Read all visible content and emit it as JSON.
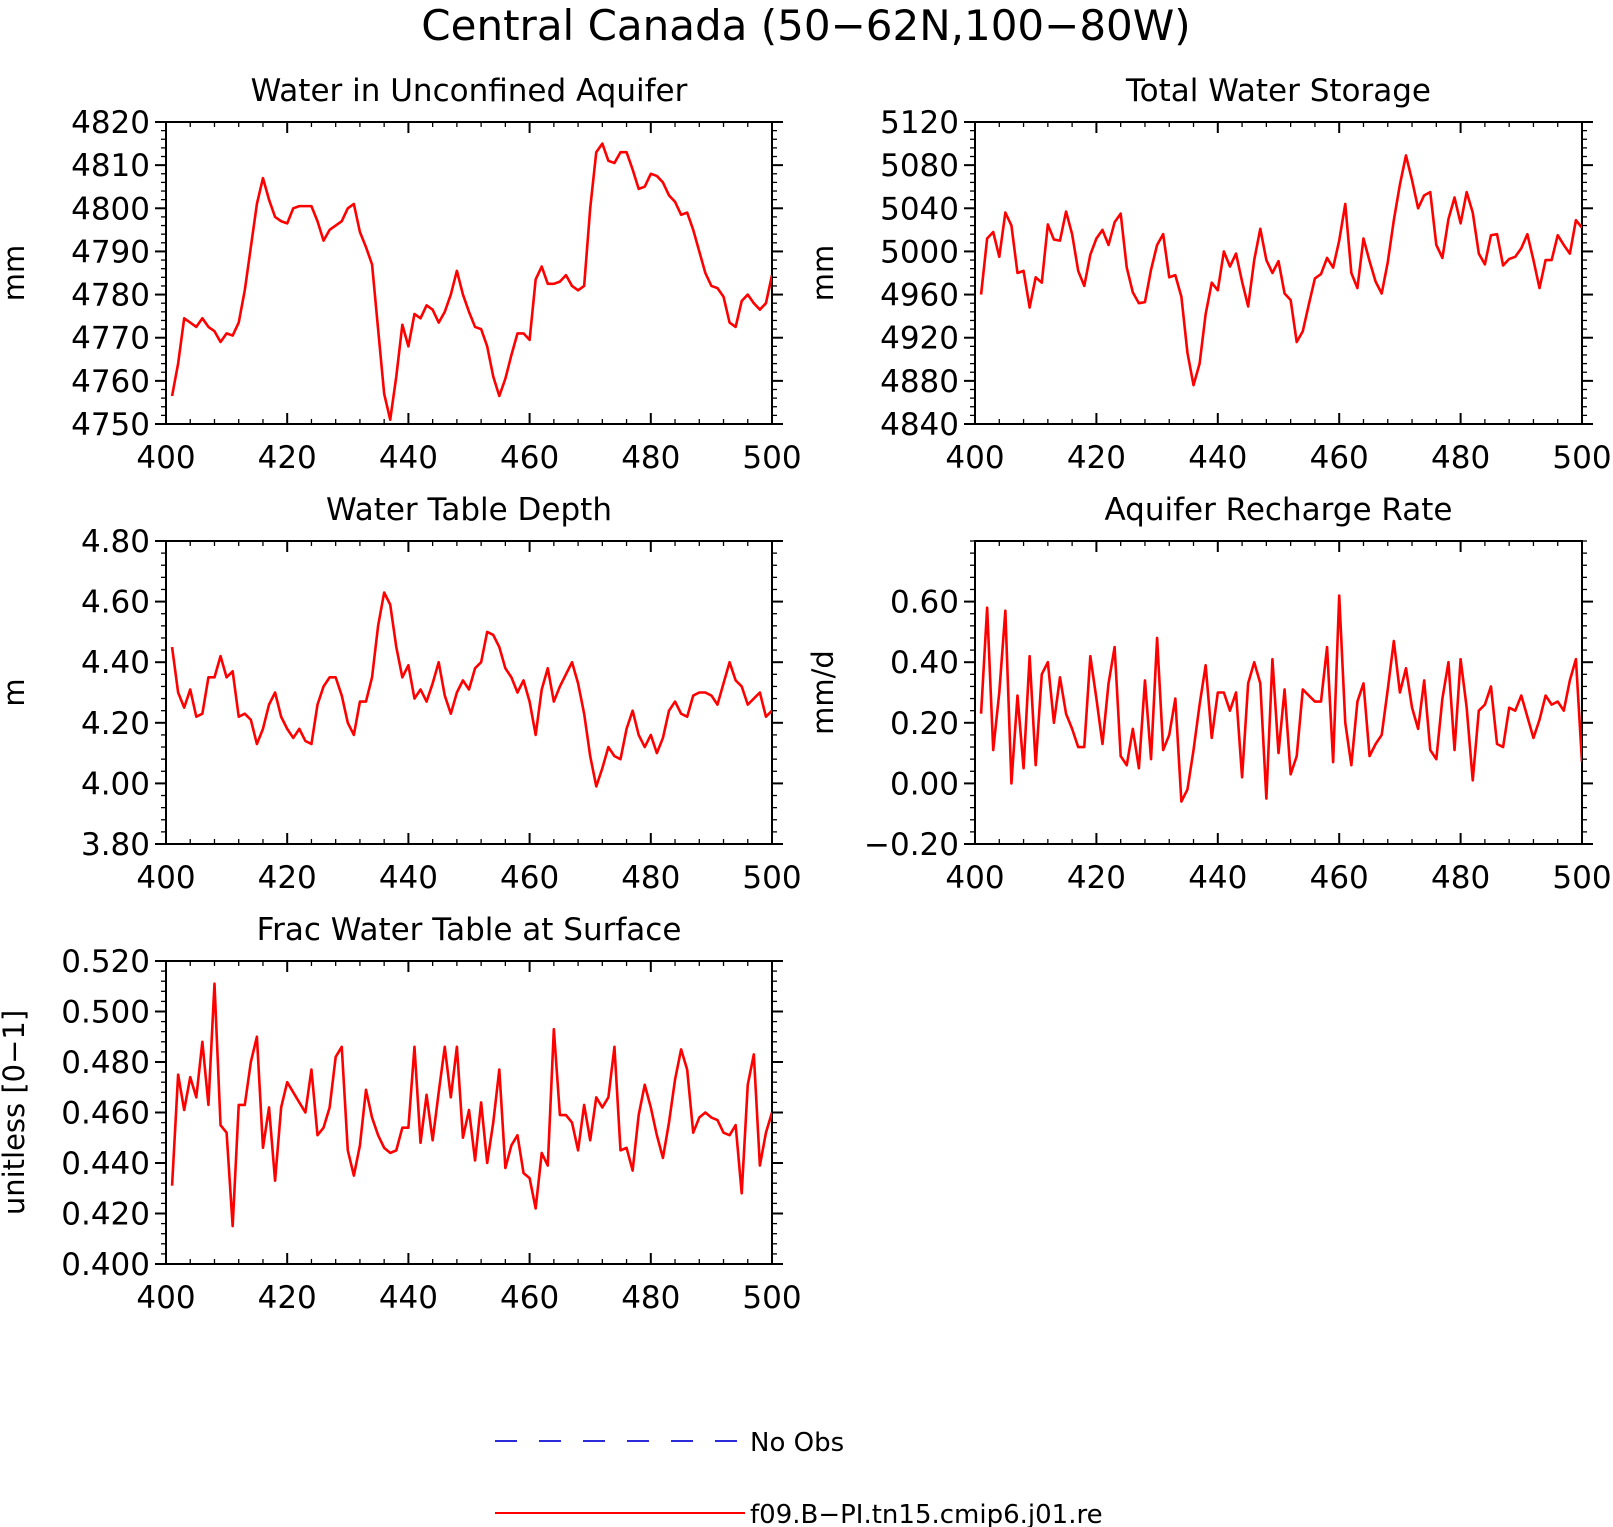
{
  "figure": {
    "title": "Central Canada (50−62N,100−80W)",
    "colors": {
      "model": "#ff0000",
      "obs": "#2b2bd9",
      "axis": "#000000"
    }
  },
  "legend": {
    "obs_label": "No Obs",
    "model_label": "f09.B−PI.tn15.cmip6.j01.re"
  },
  "chart_data": [
    {
      "type": "line",
      "title": "Water in Unconfined Aquifer",
      "xlabel": "",
      "ylabel": "mm",
      "xlim": [
        400,
        500
      ],
      "ylim": [
        4750,
        4820
      ],
      "xticks": [
        400,
        420,
        440,
        460,
        480,
        500
      ],
      "yticks": [
        4750,
        4760,
        4770,
        4780,
        4790,
        4800,
        4810,
        4820
      ],
      "ytick_labels": [
        "4750",
        "4760",
        "4770",
        "4780",
        "4790",
        "4800",
        "4810",
        "4820"
      ],
      "grid": false,
      "series": [
        {
          "name": "f09.B−PI.tn15.cmip6.j01.re",
          "x0": 401,
          "values": [
            4756.5,
            4764,
            4774.5,
            4773.5,
            4772.5,
            4774.5,
            4772.5,
            4771.5,
            4769,
            4771,
            4770.5,
            4773.5,
            4781,
            4791,
            4801,
            4807,
            4802,
            4798,
            4797,
            4796.5,
            4800,
            4800.5,
            4800.5,
            4800.5,
            4797,
            4792.5,
            4795,
            4796,
            4797,
            4800,
            4801,
            4794.5,
            4791,
            4787,
            4772,
            4757,
            4751,
            4761,
            4773,
            4768,
            4775.5,
            4774.5,
            4777.5,
            4776.5,
            4773.5,
            4776,
            4780,
            4785.5,
            4780,
            4776,
            4772.5,
            4772,
            4768,
            4761,
            4756.5,
            4760.5,
            4766,
            4771,
            4771,
            4769.5,
            4783.5,
            4786.5,
            4782.5,
            4782.5,
            4783,
            4784.5,
            4782,
            4781,
            4782,
            4800,
            4813,
            4815,
            4811,
            4810.5,
            4813,
            4813,
            4809,
            4804.5,
            4805,
            4808,
            4807.5,
            4806,
            4803,
            4801.5,
            4798.5,
            4799,
            4795,
            4790,
            4785,
            4782,
            4781.5,
            4779.5,
            4773.5,
            4772.5,
            4778.5,
            4780,
            4778,
            4776.5,
            4778,
            4784.5
          ]
        }
      ]
    },
    {
      "type": "line",
      "title": "Total Water Storage",
      "xlabel": "",
      "ylabel": "mm",
      "xlim": [
        400,
        500
      ],
      "ylim": [
        4840,
        5120
      ],
      "xticks": [
        400,
        420,
        440,
        460,
        480,
        500
      ],
      "yticks": [
        4840,
        4880,
        4920,
        4960,
        5000,
        5040,
        5080,
        5120
      ],
      "ytick_labels": [
        "4840",
        "4880",
        "4920",
        "4960",
        "5000",
        "5040",
        "5080",
        "5120"
      ],
      "grid": false,
      "series": [
        {
          "name": "f09.B−PI.tn15.cmip6.j01.re",
          "x0": 401,
          "values": [
            4960,
            5012,
            5018,
            4995,
            5036,
            5024,
            4980,
            4982,
            4948,
            4976,
            4971,
            5025,
            5011,
            5010,
            5037,
            5016,
            4982,
            4968,
            4997,
            5012,
            5020,
            5006,
            5027,
            5035,
            4985,
            4962,
            4952,
            4953,
            4983,
            5006,
            5016,
            4976,
            4978,
            4958,
            4906,
            4876,
            4896,
            4942,
            4971,
            4964,
            5000,
            4986,
            4998,
            4972,
            4949,
            4992,
            5021,
            4992,
            4980,
            4991,
            4961,
            4955,
            4916,
            4926,
            4951,
            4975,
            4979,
            4994,
            4985,
            5010,
            5044,
            4980,
            4966,
            5012,
            4991,
            4972,
            4961,
            4990,
            5029,
            5062,
            5089,
            5066,
            5040,
            5052,
            5055,
            5006,
            4994,
            5030,
            5050,
            5026,
            5055,
            5036,
            4998,
            4988,
            5015,
            5016,
            4987,
            4993,
            4995,
            5003,
            5016,
            4992,
            4966,
            4992,
            4992,
            5015,
            5006,
            4998,
            5029,
            5022
          ]
        }
      ]
    },
    {
      "type": "line",
      "title": "Water Table Depth",
      "xlabel": "",
      "ylabel": "m",
      "xlim": [
        400,
        500
      ],
      "ylim": [
        3.8,
        4.8
      ],
      "xticks": [
        400,
        420,
        440,
        460,
        480,
        500
      ],
      "yticks": [
        3.8,
        4.0,
        4.2,
        4.4,
        4.6,
        4.8
      ],
      "ytick_labels": [
        "3.80",
        "4.00",
        "4.20",
        "4.40",
        "4.60",
        "4.80"
      ],
      "grid": false,
      "series": [
        {
          "name": "f09.B−PI.tn15.cmip6.j01.re",
          "x0": 401,
          "values": [
            4.45,
            4.3,
            4.25,
            4.31,
            4.22,
            4.23,
            4.35,
            4.35,
            4.42,
            4.35,
            4.37,
            4.22,
            4.23,
            4.21,
            4.13,
            4.18,
            4.26,
            4.3,
            4.22,
            4.18,
            4.15,
            4.18,
            4.14,
            4.13,
            4.26,
            4.32,
            4.35,
            4.35,
            4.29,
            4.2,
            4.16,
            4.27,
            4.27,
            4.35,
            4.52,
            4.63,
            4.59,
            4.45,
            4.35,
            4.39,
            4.28,
            4.31,
            4.27,
            4.33,
            4.4,
            4.29,
            4.23,
            4.3,
            4.34,
            4.31,
            4.38,
            4.4,
            4.5,
            4.49,
            4.45,
            4.38,
            4.35,
            4.3,
            4.34,
            4.27,
            4.16,
            4.31,
            4.38,
            4.27,
            4.32,
            4.36,
            4.4,
            4.33,
            4.23,
            4.09,
            3.99,
            4.05,
            4.12,
            4.09,
            4.08,
            4.18,
            4.24,
            4.16,
            4.12,
            4.16,
            4.1,
            4.15,
            4.24,
            4.27,
            4.23,
            4.22,
            4.29,
            4.3,
            4.3,
            4.29,
            4.26,
            4.33,
            4.4,
            4.34,
            4.32,
            4.26,
            4.28,
            4.3,
            4.22,
            4.24
          ]
        }
      ]
    },
    {
      "type": "line",
      "title": "Aquifer Recharge Rate",
      "xlabel": "",
      "ylabel": "mm/d",
      "xlim": [
        400,
        500
      ],
      "ylim": [
        -0.2,
        0.8
      ],
      "xticks": [
        400,
        420,
        440,
        460,
        480,
        500
      ],
      "yticks": [
        -0.2,
        0.0,
        0.2,
        0.4,
        0.6
      ],
      "ytick_labels": [
        "−0.20",
        "0.00",
        "0.20",
        "0.40",
        "0.60"
      ],
      "grid": false,
      "series": [
        {
          "name": "f09.B−PI.tn15.cmip6.j01.re",
          "x0": 401,
          "values": [
            0.23,
            0.58,
            0.11,
            0.3,
            0.57,
            0.0,
            0.29,
            0.05,
            0.42,
            0.06,
            0.36,
            0.4,
            0.2,
            0.35,
            0.23,
            0.18,
            0.12,
            0.12,
            0.42,
            0.28,
            0.13,
            0.33,
            0.45,
            0.09,
            0.06,
            0.18,
            0.05,
            0.34,
            0.08,
            0.48,
            0.11,
            0.16,
            0.28,
            -0.06,
            -0.02,
            0.11,
            0.26,
            0.39,
            0.15,
            0.3,
            0.3,
            0.24,
            0.3,
            0.02,
            0.33,
            0.4,
            0.33,
            -0.05,
            0.41,
            0.1,
            0.31,
            0.03,
            0.09,
            0.31,
            0.29,
            0.27,
            0.27,
            0.45,
            0.07,
            0.62,
            0.2,
            0.06,
            0.27,
            0.33,
            0.09,
            0.13,
            0.16,
            0.31,
            0.47,
            0.3,
            0.38,
            0.25,
            0.18,
            0.34,
            0.11,
            0.08,
            0.28,
            0.4,
            0.11,
            0.41,
            0.25,
            0.01,
            0.24,
            0.26,
            0.32,
            0.13,
            0.12,
            0.25,
            0.24,
            0.29,
            0.22,
            0.15,
            0.21,
            0.29,
            0.26,
            0.27,
            0.24,
            0.34,
            0.41,
            0.07
          ]
        }
      ]
    },
    {
      "type": "line",
      "title": "Frac Water Table at Surface",
      "xlabel": "",
      "ylabel": "unitless [0−1]",
      "xlim": [
        400,
        500
      ],
      "ylim": [
        0.4,
        0.52
      ],
      "xticks": [
        400,
        420,
        440,
        460,
        480,
        500
      ],
      "yticks": [
        0.4,
        0.42,
        0.44,
        0.46,
        0.48,
        0.5,
        0.52
      ],
      "ytick_labels": [
        "0.400",
        "0.420",
        "0.440",
        "0.460",
        "0.480",
        "0.500",
        "0.520"
      ],
      "grid": false,
      "series": [
        {
          "name": "f09.B−PI.tn15.cmip6.j01.re",
          "x0": 401,
          "values": [
            0.431,
            0.475,
            0.461,
            0.474,
            0.466,
            0.488,
            0.463,
            0.511,
            0.455,
            0.452,
            0.415,
            0.463,
            0.463,
            0.48,
            0.49,
            0.446,
            0.462,
            0.433,
            0.462,
            0.472,
            0.468,
            0.464,
            0.46,
            0.477,
            0.451,
            0.454,
            0.462,
            0.482,
            0.486,
            0.445,
            0.435,
            0.447,
            0.469,
            0.458,
            0.451,
            0.446,
            0.444,
            0.445,
            0.454,
            0.454,
            0.486,
            0.448,
            0.467,
            0.449,
            0.468,
            0.486,
            0.466,
            0.486,
            0.45,
            0.461,
            0.441,
            0.464,
            0.44,
            0.456,
            0.477,
            0.438,
            0.447,
            0.451,
            0.436,
            0.434,
            0.422,
            0.444,
            0.439,
            0.493,
            0.459,
            0.459,
            0.456,
            0.445,
            0.463,
            0.449,
            0.466,
            0.462,
            0.466,
            0.486,
            0.445,
            0.446,
            0.437,
            0.459,
            0.471,
            0.462,
            0.451,
            0.442,
            0.456,
            0.473,
            0.485,
            0.477,
            0.452,
            0.458,
            0.46,
            0.458,
            0.457,
            0.452,
            0.451,
            0.455,
            0.428,
            0.471,
            0.483,
            0.439,
            0.452,
            0.46
          ]
        }
      ]
    }
  ]
}
